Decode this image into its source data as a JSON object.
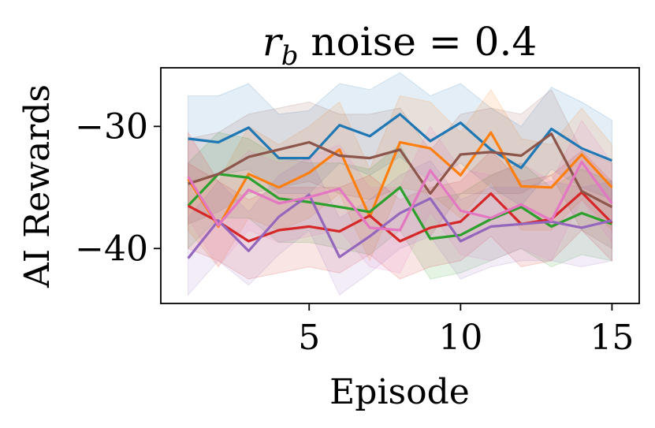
{
  "chart_data": {
    "type": "line",
    "title_var": "r",
    "title_sub": "b",
    "title_rest": " noise = 0.4",
    "xlabel": "Episode",
    "ylabel": "AI Rewards",
    "xlim": [
      0.1,
      15.9
    ],
    "ylim": [
      -44.5,
      -25.2
    ],
    "xticks": [
      5,
      10,
      15
    ],
    "xtick_labels": [
      "5",
      "10",
      "15"
    ],
    "yticks": [
      -40,
      -30
    ],
    "ytick_labels": [
      "−40",
      "−30"
    ],
    "x": [
      1,
      2,
      3,
      4,
      5,
      6,
      7,
      8,
      9,
      10,
      11,
      12,
      13,
      14,
      15
    ],
    "series": [
      {
        "name": "blue",
        "color": "#1f77b4",
        "values": [
          -31.0,
          -31.3,
          -30.1,
          -32.6,
          -32.6,
          -29.9,
          -30.8,
          -29.0,
          -31.2,
          -29.7,
          -31.9,
          -33.4,
          -30.2,
          -31.8,
          -32.8
        ],
        "lower": [
          -34.5,
          -34.0,
          -33.5,
          -35.5,
          -35.5,
          -33.0,
          -34.0,
          -32.5,
          -34.5,
          -33.0,
          -35.0,
          -36.5,
          -33.5,
          -35.0,
          -36.0
        ],
        "upper": [
          -27.5,
          -27.5,
          -26.5,
          -29.0,
          -28.7,
          -26.5,
          -27.0,
          -25.6,
          -27.5,
          -26.5,
          -28.5,
          -30.0,
          -26.8,
          -28.0,
          -29.5
        ]
      },
      {
        "name": "orange",
        "color": "#ff7f0e",
        "values": [
          -34.3,
          -38.2,
          -33.9,
          -35.0,
          -33.8,
          -31.9,
          -37.4,
          -31.3,
          -31.8,
          -34.0,
          -30.5,
          -34.9,
          -35.0,
          -32.3,
          -35.0
        ],
        "lower": [
          -38.5,
          -41.5,
          -37.5,
          -38.5,
          -37.5,
          -35.5,
          -41.0,
          -35.0,
          -35.5,
          -37.5,
          -34.5,
          -38.5,
          -38.5,
          -36.0,
          -38.5
        ],
        "upper": [
          -30.5,
          -34.5,
          -30.0,
          -31.5,
          -30.0,
          -28.0,
          -33.5,
          -27.5,
          -28.0,
          -30.5,
          -27.0,
          -31.0,
          -31.5,
          -28.5,
          -31.5
        ]
      },
      {
        "name": "green",
        "color": "#2ca02c",
        "values": [
          -36.5,
          -33.9,
          -34.2,
          -35.9,
          -36.2,
          -36.6,
          -37.0,
          -35.0,
          -39.2,
          -38.9,
          -37.6,
          -36.6,
          -38.2,
          -37.1,
          -38.0
        ],
        "lower": [
          -40.0,
          -37.5,
          -37.5,
          -39.5,
          -39.5,
          -40.0,
          -40.5,
          -38.5,
          -42.5,
          -42.0,
          -41.0,
          -40.0,
          -41.5,
          -40.5,
          -41.0
        ],
        "upper": [
          -33.0,
          -30.5,
          -31.0,
          -32.5,
          -33.0,
          -33.0,
          -33.5,
          -31.5,
          -36.0,
          -35.5,
          -34.0,
          -33.0,
          -35.0,
          -33.5,
          -34.5
        ]
      },
      {
        "name": "red",
        "color": "#d62728",
        "values": [
          -36.5,
          -37.8,
          -39.4,
          -38.5,
          -38.2,
          -38.6,
          -37.3,
          -39.4,
          -38.3,
          -37.8,
          -35.5,
          -38.0,
          -37.6,
          -35.4,
          -37.9
        ],
        "lower": [
          -40.0,
          -41.0,
          -42.5,
          -42.0,
          -41.5,
          -42.0,
          -40.5,
          -42.5,
          -41.5,
          -41.0,
          -39.0,
          -41.5,
          -41.0,
          -38.5,
          -41.0
        ],
        "upper": [
          -33.0,
          -34.5,
          -36.0,
          -35.0,
          -35.0,
          -35.0,
          -34.0,
          -36.0,
          -35.0,
          -34.5,
          -32.0,
          -34.5,
          -34.0,
          -32.0,
          -34.5
        ]
      },
      {
        "name": "purple",
        "color": "#9467bd",
        "values": [
          -40.8,
          -37.7,
          -40.2,
          -37.4,
          -35.6,
          -40.7,
          -39.0,
          -37.1,
          -35.9,
          -39.4,
          -38.2,
          -38.0,
          -37.8,
          -38.3,
          -37.7
        ],
        "lower": [
          -43.8,
          -41.0,
          -43.0,
          -40.5,
          -38.5,
          -43.8,
          -42.0,
          -40.0,
          -39.0,
          -42.5,
          -41.5,
          -41.0,
          -41.0,
          -41.5,
          -41.0
        ],
        "upper": [
          -37.5,
          -34.5,
          -37.0,
          -34.0,
          -32.5,
          -37.5,
          -36.0,
          -34.0,
          -32.8,
          -36.0,
          -35.0,
          -35.0,
          -34.5,
          -35.0,
          -34.5
        ]
      },
      {
        "name": "brown",
        "color": "#8c564b",
        "values": [
          -34.7,
          -33.9,
          -32.5,
          -31.9,
          -31.3,
          -32.4,
          -32.6,
          -31.9,
          -35.5,
          -32.3,
          -32.1,
          -32.4,
          -30.6,
          -35.3,
          -36.6
        ],
        "lower": [
          -38.0,
          -37.0,
          -35.5,
          -35.0,
          -34.5,
          -35.5,
          -36.0,
          -35.0,
          -39.0,
          -35.5,
          -35.5,
          -35.5,
          -34.0,
          -38.5,
          -40.0
        ],
        "upper": [
          -31.0,
          -30.5,
          -29.0,
          -28.5,
          -28.0,
          -29.0,
          -29.0,
          -28.5,
          -32.0,
          -29.0,
          -28.5,
          -29.0,
          -27.0,
          -32.0,
          -33.0
        ]
      },
      {
        "name": "pink",
        "color": "#e377c2",
        "values": [
          -34.1,
          -38.1,
          -35.2,
          -36.3,
          -35.8,
          -35.1,
          -38.3,
          -38.5,
          -33.6,
          -36.9,
          -37.5,
          -36.4,
          -37.7,
          -32.9,
          -36.3
        ],
        "lower": [
          -37.5,
          -41.5,
          -38.5,
          -39.5,
          -39.0,
          -38.5,
          -41.5,
          -42.0,
          -37.0,
          -40.5,
          -41.0,
          -40.0,
          -41.0,
          -36.0,
          -39.5
        ],
        "upper": [
          -30.5,
          -34.5,
          -32.0,
          -33.0,
          -32.5,
          -31.5,
          -35.0,
          -35.0,
          -30.0,
          -33.5,
          -34.0,
          -33.0,
          -34.5,
          -29.5,
          -33.0
        ]
      }
    ]
  }
}
